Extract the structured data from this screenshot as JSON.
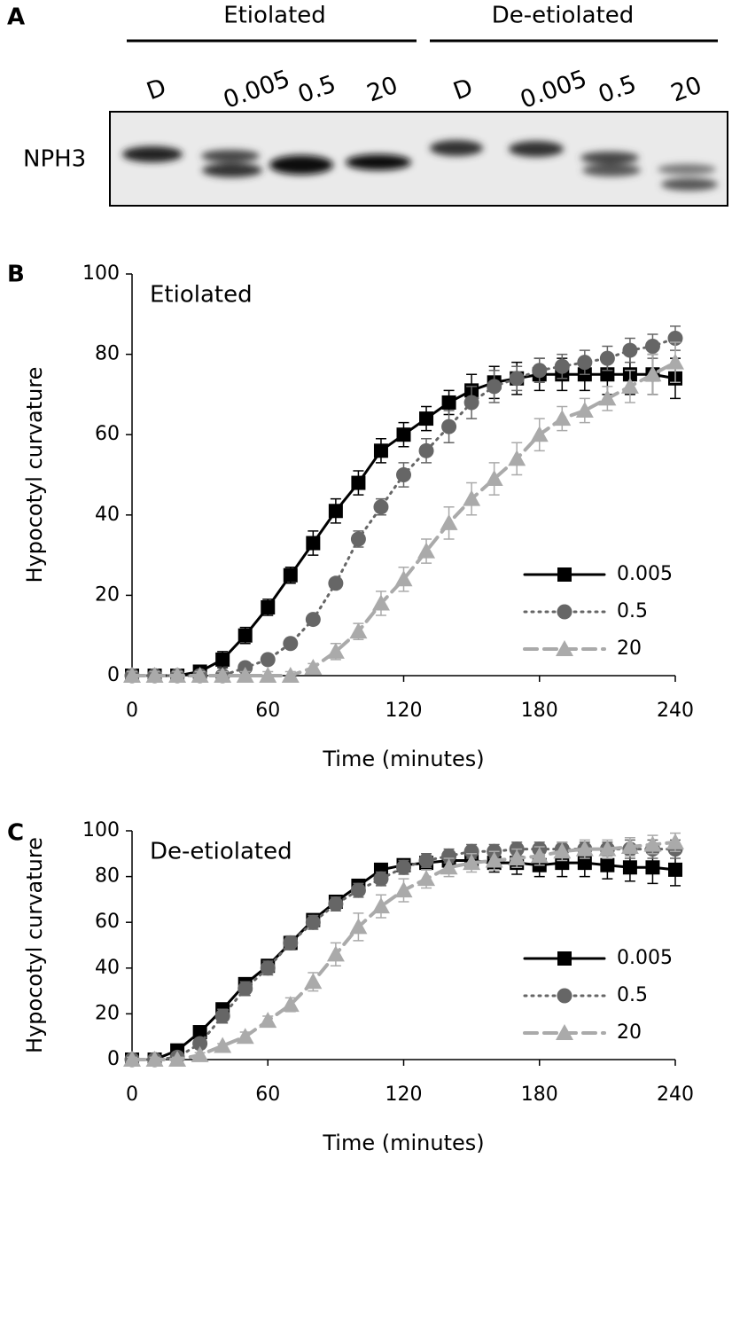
{
  "panel_a": {
    "panel_label": "A",
    "groups": [
      "Etiolated",
      "De-etiolated"
    ],
    "lanes": [
      "D",
      "0.005",
      "0.5",
      "20",
      "D",
      "0.005",
      "0.5",
      "20"
    ],
    "row_label": "NPH3"
  },
  "chart_data": [
    {
      "type": "line",
      "panel_label": "B",
      "title": "Etiolated",
      "xlabel": "Time (minutes)",
      "ylabel": "Hypocotyl curvature",
      "x": [
        0,
        10,
        20,
        30,
        40,
        50,
        60,
        70,
        80,
        90,
        100,
        110,
        120,
        130,
        140,
        150,
        160,
        170,
        180,
        190,
        200,
        210,
        220,
        230,
        240
      ],
      "xlim": [
        0,
        240
      ],
      "xticks": [
        0,
        60,
        120,
        180,
        240
      ],
      "ylim": [
        0,
        100
      ],
      "yticks": [
        0,
        20,
        40,
        60,
        80,
        100
      ],
      "legend": "lower right",
      "series": [
        {
          "name": "0.005",
          "color": "#000000",
          "dash": "solid",
          "marker": "square",
          "values": [
            0,
            0,
            0,
            1,
            4,
            10,
            17,
            25,
            33,
            41,
            48,
            56,
            60,
            64,
            68,
            71,
            73,
            74,
            75,
            75,
            75,
            75,
            75,
            75,
            74
          ],
          "errors": [
            1,
            1,
            1,
            1,
            2,
            2,
            2,
            2,
            3,
            3,
            3,
            3,
            3,
            3,
            3,
            4,
            4,
            4,
            4,
            4,
            4,
            5,
            5,
            5,
            5
          ]
        },
        {
          "name": "0.5",
          "color": "#666666",
          "dash": "dotted",
          "marker": "circle",
          "values": [
            0,
            0,
            0,
            0,
            0,
            2,
            4,
            8,
            14,
            23,
            34,
            42,
            50,
            56,
            62,
            68,
            72,
            74,
            76,
            77,
            78,
            79,
            81,
            82,
            84
          ],
          "errors": [
            1,
            1,
            1,
            1,
            1,
            1,
            1,
            1,
            1,
            1,
            2,
            2,
            3,
            3,
            4,
            4,
            4,
            3,
            3,
            3,
            3,
            3,
            3,
            3,
            3
          ]
        },
        {
          "name": "20",
          "color": "#aaaaaa",
          "dash": "dashed",
          "marker": "triangle",
          "values": [
            0,
            0,
            0,
            0,
            0,
            0,
            0,
            0,
            2,
            6,
            11,
            18,
            24,
            31,
            38,
            44,
            49,
            54,
            60,
            64,
            66,
            69,
            72,
            75,
            78
          ],
          "errors": [
            1,
            1,
            1,
            1,
            1,
            1,
            1,
            1,
            1,
            2,
            2,
            3,
            3,
            3,
            4,
            4,
            4,
            4,
            4,
            3,
            3,
            3,
            4,
            5,
            5
          ]
        }
      ]
    },
    {
      "type": "line",
      "panel_label": "C",
      "title": "De-etiolated",
      "xlabel": "Time (minutes)",
      "ylabel": "Hypocotyl curvature",
      "x": [
        0,
        10,
        20,
        30,
        40,
        50,
        60,
        70,
        80,
        90,
        100,
        110,
        120,
        130,
        140,
        150,
        160,
        170,
        180,
        190,
        200,
        210,
        220,
        230,
        240
      ],
      "xlim": [
        0,
        240
      ],
      "xticks": [
        0,
        60,
        120,
        180,
        240
      ],
      "ylim": [
        0,
        100
      ],
      "yticks": [
        0,
        20,
        40,
        60,
        80,
        100
      ],
      "legend": "lower right",
      "series": [
        {
          "name": "0.005",
          "color": "#000000",
          "dash": "solid",
          "marker": "square",
          "values": [
            0,
            0,
            4,
            12,
            22,
            33,
            41,
            51,
            61,
            69,
            76,
            83,
            85,
            86,
            87,
            87,
            86,
            86,
            85,
            86,
            86,
            85,
            84,
            84,
            83
          ],
          "errors": [
            1,
            1,
            1,
            2,
            2,
            2,
            2,
            2,
            2,
            2,
            2,
            2,
            2,
            3,
            3,
            3,
            4,
            5,
            5,
            6,
            6,
            6,
            6,
            7,
            7
          ]
        },
        {
          "name": "0.5",
          "color": "#666666",
          "dash": "dotted",
          "marker": "circle",
          "values": [
            0,
            0,
            1,
            7,
            19,
            31,
            40,
            51,
            60,
            68,
            74,
            79,
            84,
            87,
            89,
            91,
            91,
            92,
            92,
            92,
            92,
            92,
            92,
            92,
            92
          ],
          "errors": [
            1,
            1,
            1,
            2,
            3,
            3,
            3,
            3,
            3,
            3,
            3,
            3,
            3,
            3,
            3,
            3,
            3,
            3,
            3,
            3,
            3,
            3,
            4,
            4,
            4
          ]
        },
        {
          "name": "20",
          "color": "#aaaaaa",
          "dash": "dashed",
          "marker": "triangle",
          "values": [
            0,
            0,
            0,
            2,
            6,
            10,
            17,
            24,
            34,
            46,
            58,
            67,
            74,
            79,
            84,
            86,
            87,
            88,
            89,
            91,
            92,
            92,
            93,
            94,
            95
          ],
          "errors": [
            1,
            1,
            1,
            1,
            1,
            2,
            2,
            3,
            4,
            5,
            6,
            5,
            5,
            4,
            4,
            4,
            4,
            4,
            4,
            4,
            4,
            4,
            4,
            4,
            4
          ]
        }
      ]
    }
  ]
}
